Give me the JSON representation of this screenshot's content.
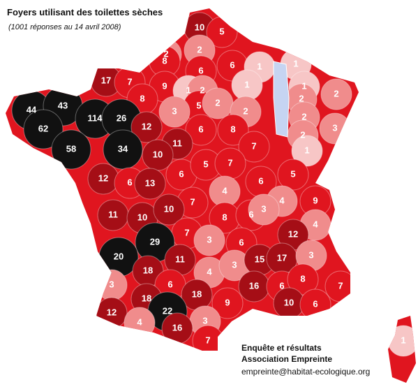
{
  "header": {
    "title": "Foyers utilisant des toilettes sèches",
    "subtitle": "(1001 réponses au 14 avril 2008)"
  },
  "credits": [
    "Enquête et résultats",
    "Association Empreinte",
    "empreinte@habitat-ecologique.org"
  ],
  "map": {
    "regions": [
      10,
      5,
      2,
      2,
      8,
      6,
      6,
      1,
      1,
      17,
      7,
      9,
      1,
      2,
      1,
      1,
      2,
      8,
      5,
      2,
      3,
      2,
      2,
      2,
      3,
      44,
      43,
      114,
      26,
      62,
      12,
      6,
      8,
      2,
      58,
      34,
      11,
      10,
      7,
      1,
      12,
      6,
      13,
      6,
      5,
      7,
      6,
      5,
      4,
      9,
      7,
      4,
      11,
      10,
      10,
      8,
      6,
      3,
      4,
      7,
      12,
      29,
      3,
      6,
      20,
      11,
      4,
      3,
      15,
      17,
      3,
      18,
      3,
      6,
      16,
      6,
      8,
      7,
      18,
      18,
      9,
      10,
      6,
      22,
      12,
      4,
      3,
      16,
      7,
      1
    ]
  }
}
